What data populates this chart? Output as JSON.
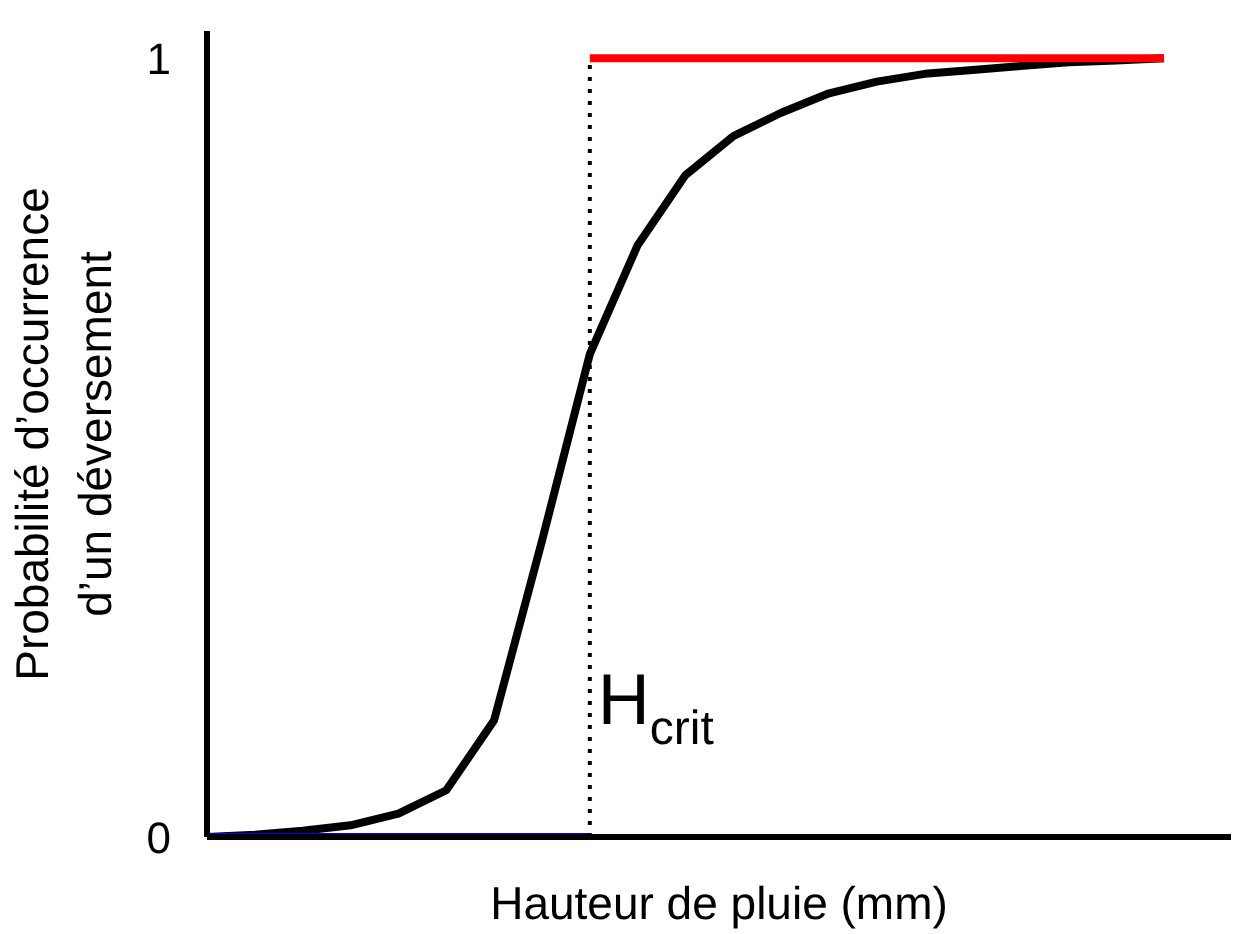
{
  "chart_data": {
    "type": "line",
    "xlabel": "Hauteur de pluie (mm)",
    "ylabel": "Probabilité d’occurrence\nd’un déversement",
    "categories": [
      null,
      null,
      null,
      null,
      null,
      null,
      null,
      null,
      null,
      null,
      null,
      null,
      null,
      null,
      null,
      null,
      null,
      null,
      null,
      null,
      null
    ],
    "series": [
      {
        "color": "#000000",
        "values": [
          0,
          0.003,
          0.008,
          0.015,
          0.03,
          0.06,
          0.15,
          0.38,
          0.62,
          0.76,
          0.85,
          0.9,
          0.93,
          0.955,
          0.97,
          0.98,
          0.985,
          0.99,
          0.995,
          0.997,
          1.0
        ]
      },
      {
        "color": "#0000ff",
        "values": [
          0,
          0,
          0,
          0,
          0,
          0,
          0,
          0,
          0,
          null,
          null,
          null,
          null,
          null,
          null,
          null,
          null,
          null,
          null,
          null,
          null
        ]
      },
      {
        "color": "#ff0000",
        "values": [
          null,
          null,
          null,
          null,
          null,
          null,
          null,
          null,
          1,
          1,
          1,
          1,
          1,
          1,
          1,
          1,
          1,
          1,
          1,
          1,
          1
        ]
      }
    ],
    "ylim": [
      0,
      1.035
    ],
    "yticks": [
      0,
      1
    ],
    "tick_labels": "y",
    "grid": false,
    "marker": "none",
    "line_style": "solid",
    "annotations": [
      "H$_{crit}$"
    ]
  }
}
